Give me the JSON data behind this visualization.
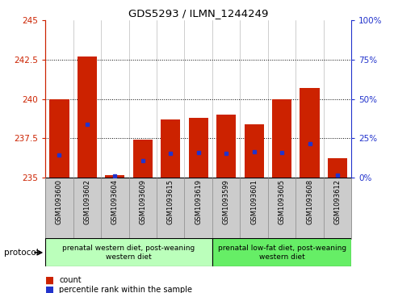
{
  "title": "GDS5293 / ILMN_1244249",
  "samples": [
    "GSM1093600",
    "GSM1093602",
    "GSM1093604",
    "GSM1093609",
    "GSM1093615",
    "GSM1093619",
    "GSM1093599",
    "GSM1093601",
    "GSM1093605",
    "GSM1093608",
    "GSM1093612"
  ],
  "red_values": [
    240.0,
    242.7,
    235.15,
    237.4,
    238.7,
    238.8,
    239.0,
    238.4,
    240.0,
    240.7,
    236.2
  ],
  "blue_values": [
    236.4,
    238.4,
    235.1,
    236.05,
    236.55,
    236.6,
    236.55,
    236.65,
    236.6,
    237.15,
    235.15
  ],
  "ymin": 235,
  "ymax": 245,
  "yticks": [
    235,
    237.5,
    240,
    242.5,
    245
  ],
  "ytick_labels_left": [
    "235",
    "237.5",
    "240",
    "242.5",
    "245"
  ],
  "right_yticks": [
    0,
    25,
    50,
    75,
    100
  ],
  "right_ytick_labels": [
    "0%",
    "25%",
    "50%",
    "75%",
    "100%"
  ],
  "bar_color": "#cc2200",
  "blue_color": "#2233cc",
  "baseline": 235,
  "group1_label": "prenatal western diet, post-weaning\nwestern diet",
  "group2_label": "prenatal low-fat diet, post-weaning\nwestern diet",
  "group1_color": "#bbffbb",
  "group2_color": "#66ee66",
  "left_axis_color": "#cc2200",
  "right_axis_color": "#2233cc",
  "background_color": "#ffffff",
  "bar_width": 0.7,
  "label_bg_color": "#cccccc"
}
